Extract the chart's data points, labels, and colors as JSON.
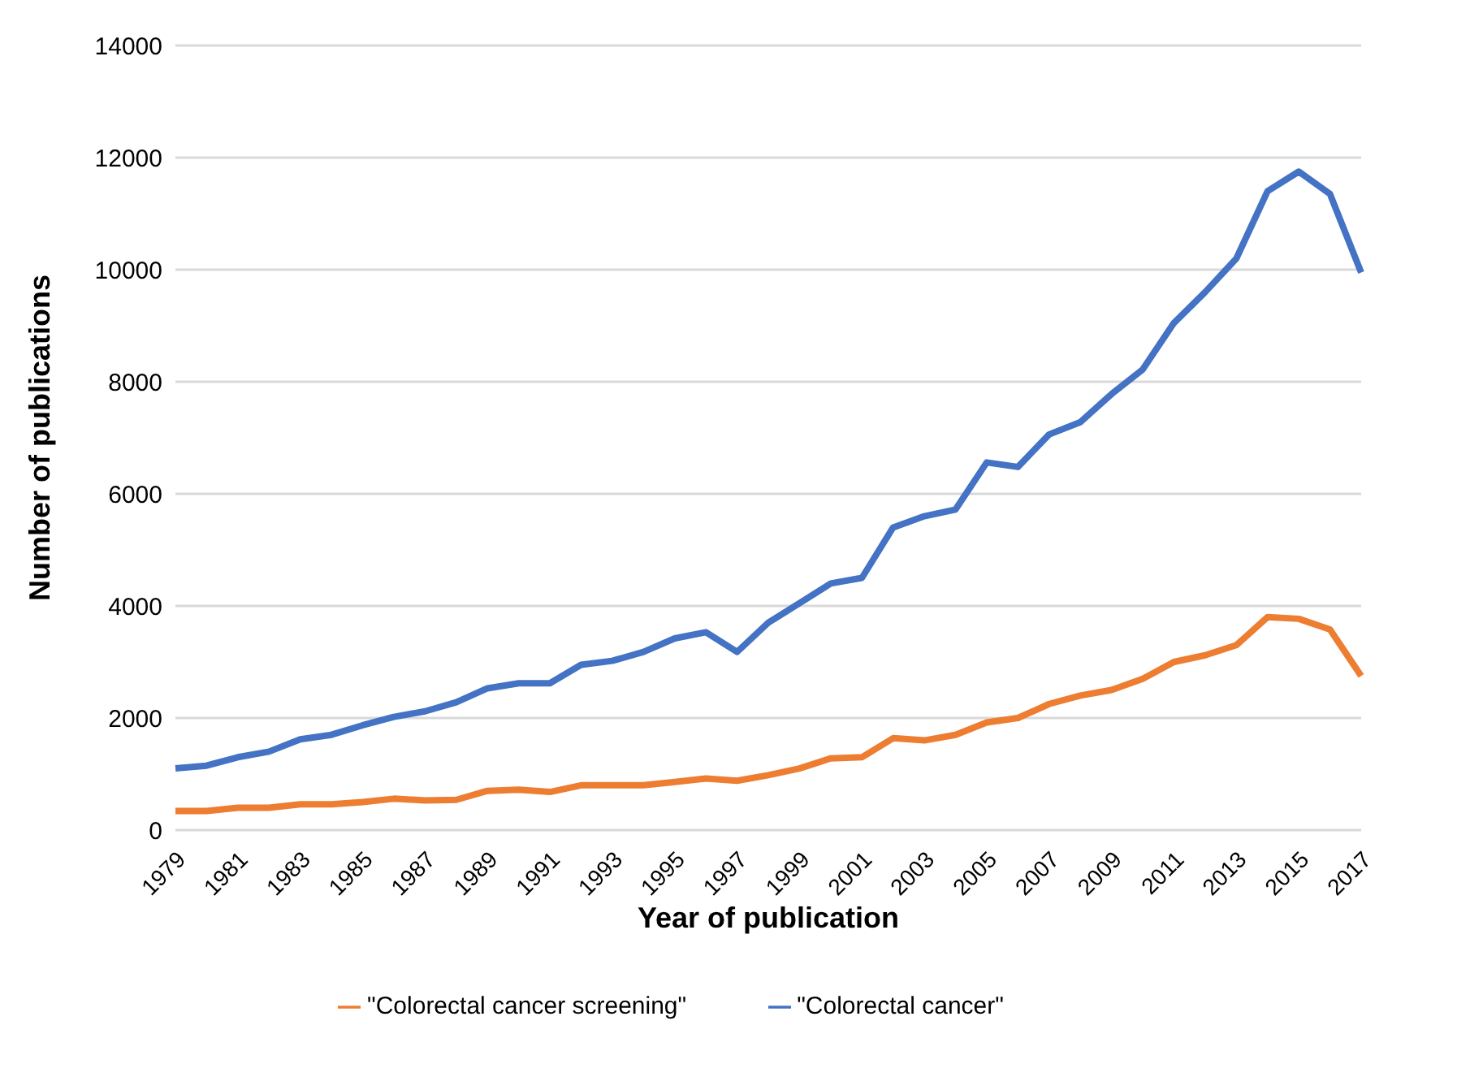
{
  "chart_data": {
    "type": "line",
    "xlabel": "Year of publication",
    "ylabel": "Number of publications",
    "categories": [
      "1979",
      null,
      "1981",
      null,
      "1983",
      null,
      "1985",
      null,
      "1987",
      null,
      "1989",
      null,
      "1991",
      null,
      "1993",
      null,
      "1995",
      null,
      "1997",
      null,
      "1999",
      null,
      "2001",
      null,
      "2003",
      null,
      "2005",
      null,
      "2007",
      null,
      "2009",
      null,
      "2011",
      null,
      "2013",
      null,
      "2015",
      null,
      "2017"
    ],
    "series": [
      {
        "name": "\"Colorectal cancer screening\"",
        "color": "#ed7d31",
        "values": [
          340,
          340,
          400,
          400,
          460,
          460,
          500,
          560,
          530,
          540,
          700,
          720,
          680,
          800,
          800,
          800,
          860,
          920,
          880,
          980,
          1100,
          1280,
          1300,
          1640,
          1600,
          1700,
          1920,
          2000,
          2250,
          2400,
          2500,
          2700,
          3000,
          3120,
          3300,
          3800,
          3770,
          3580,
          2750
        ]
      },
      {
        "name": "\"Colorectal cancer\"",
        "color": "#4472c4",
        "values": [
          1100,
          1150,
          1300,
          1400,
          1620,
          1700,
          1870,
          2020,
          2120,
          2280,
          2530,
          2620,
          2620,
          2950,
          3020,
          3180,
          3420,
          3530,
          3180,
          3700,
          4050,
          4400,
          4500,
          5400,
          5600,
          5720,
          6560,
          6480,
          7060,
          7280,
          7780,
          8220,
          9050,
          9600,
          10200,
          11400,
          11750,
          11350,
          9950
        ]
      }
    ],
    "ylim": [
      0,
      14000
    ],
    "yticks": [
      0,
      2000,
      4000,
      6000,
      8000,
      10000,
      12000,
      14000
    ],
    "grid": "y",
    "legend": "bottom",
    "marker": "none",
    "line_style": "solid"
  }
}
